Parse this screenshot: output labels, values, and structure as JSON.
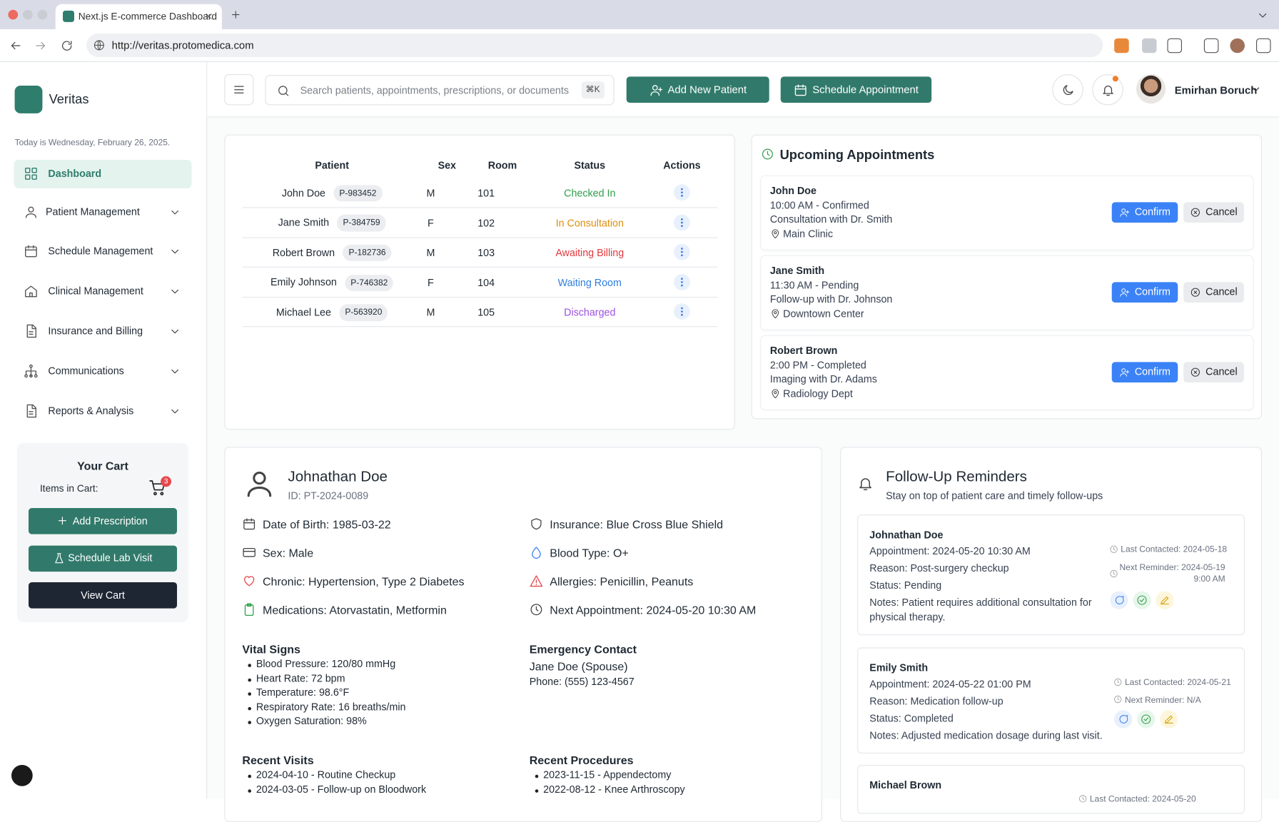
{
  "browser": {
    "tab_title": "Next.js E-commerce Dashboard",
    "url": "http://veritas.protomedica.com"
  },
  "sidebar": {
    "brand": "Veritas",
    "date": "Today is Wednesday, February 26, 2025.",
    "nav": [
      "Dashboard",
      "Patient Management",
      "Schedule Management",
      "Clinical Management",
      "Insurance and Billing",
      "Communications",
      "Reports & Analysis"
    ],
    "cart": {
      "title": "Your Cart",
      "items_label": "Items in Cart:",
      "count": 3,
      "buttons": [
        "Add Prescription",
        "Schedule Lab Visit",
        "View Cart"
      ]
    }
  },
  "header": {
    "search_placeholder": "Search patients, appointments, prescriptions, or documents",
    "shortcut": "⌘K",
    "add_patient": "Add New Patient",
    "schedule": "Schedule Appointment",
    "user": "Emirhan Boruch"
  },
  "patients_table": {
    "columns": [
      "Patient",
      "Sex",
      "Room",
      "Status",
      "Actions"
    ],
    "rows": [
      [
        "John Doe",
        "P-983452",
        "M",
        "101",
        "Checked In"
      ],
      [
        "Jane Smith",
        "P-384759",
        "F",
        "102",
        "In Consultation"
      ],
      [
        "Robert Brown",
        "P-182736",
        "M",
        "103",
        "Awaiting Billing"
      ],
      [
        "Emily Johnson",
        "P-746382",
        "F",
        "104",
        "Waiting Room"
      ],
      [
        "Michael Lee",
        "P-563920",
        "M",
        "105",
        "Discharged"
      ]
    ]
  },
  "appointments": {
    "title": "Upcoming Appointments",
    "confirm": "Confirm",
    "cancel": "Cancel",
    "items": [
      {
        "name": "John Doe",
        "time": "10:00 AM - Confirmed",
        "desc": "Consultation with Dr. Smith",
        "location": "Main Clinic"
      },
      {
        "name": "Jane Smith",
        "time": "11:30 AM - Pending",
        "desc": "Follow-up with Dr. Johnson",
        "location": "Downtown Center"
      },
      {
        "name": "Robert Brown",
        "time": "2:00 PM - Completed",
        "desc": "Imaging with Dr. Adams",
        "location": "Radiology Dept"
      }
    ]
  },
  "patient": {
    "name": "Johnathan Doe",
    "id": "ID: PT-2024-0089",
    "details": [
      "Date of Birth: 1985-03-22",
      "Insurance: Blue Cross Blue Shield",
      "Sex: Male",
      "Blood Type: O+",
      "Chronic: Hypertension, Type 2 Diabetes",
      "Allergies: Penicillin, Peanuts",
      "Medications: Atorvastatin, Metformin",
      "Next Appointment: 2024-05-20 10:30 AM"
    ],
    "vitals": {
      "title": "Vital Signs",
      "items": [
        "Blood Pressure: 120/80 mmHg",
        "Heart Rate: 72 bpm",
        "Temperature: 98.6°F",
        "Respiratory Rate: 16 breaths/min",
        "Oxygen Saturation: 98%"
      ]
    },
    "emergency": {
      "title": "Emergency Contact",
      "name": "Jane Doe (Spouse)",
      "phone": "Phone: (555) 123-4567"
    },
    "recent_visits": {
      "title": "Recent Visits",
      "items": [
        "2024-04-10 - Routine Checkup",
        "2024-03-05 - Follow-up on Bloodwork"
      ]
    },
    "recent_procedures": {
      "title": "Recent Procedures",
      "items": [
        "2023-11-15 - Appendectomy",
        "2022-08-12 - Knee Arthroscopy"
      ]
    }
  },
  "reminders": {
    "title": "Follow-Up Reminders",
    "subtitle": "Stay on top of patient care and timely follow-ups",
    "items": [
      {
        "name": "Johnathan Doe",
        "lines": [
          "Appointment: 2024-05-20 10:30 AM",
          "Reason: Post-surgery checkup",
          "Status: Pending",
          "Notes: Patient requires additional consultation for physical therapy."
        ],
        "last_contacted": "Last Contacted: 2024-05-18",
        "next_reminder": "Next Reminder: 2024-05-19 9:00 AM"
      },
      {
        "name": "Emily Smith",
        "lines": [
          "Appointment: 2024-05-22 01:00 PM",
          "Reason: Medication follow-up",
          "Status: Completed",
          "Notes: Adjusted medication dosage during last visit."
        ],
        "last_contacted": "Last Contacted: 2024-05-21",
        "next_reminder": "Next Reminder: N/A"
      },
      {
        "name": "Michael Brown",
        "lines": [],
        "last_contacted": "Last Contacted: 2024-05-20"
      }
    ]
  }
}
